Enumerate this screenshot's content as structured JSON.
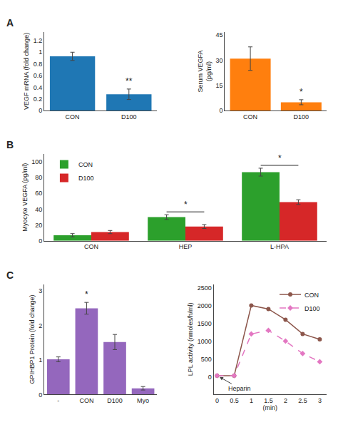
{
  "chart_data": [
    {
      "type": "bar",
      "title": "A",
      "categories": [
        "CON",
        "D100"
      ],
      "values": [
        0.93,
        0.28
      ],
      "errors": [
        0.07,
        0.09
      ],
      "ylabel": "VEGF mRNA (fold change)",
      "ylim": [
        0,
        1.35
      ],
      "yticks": [
        0,
        0.2,
        0.4,
        0.6,
        0.8,
        1,
        1.2
      ],
      "grid": false,
      "annotations": [
        {
          "text": "**",
          "x": "D100"
        }
      ]
    },
    {
      "type": "bar",
      "categories": [
        "CON",
        "D100"
      ],
      "values": [
        31,
        5
      ],
      "errors": [
        7,
        1.5
      ],
      "ylabel": "Serum VEGFA\n(pg/ml)",
      "ylim": [
        0,
        47
      ],
      "yticks": [
        0,
        15,
        30,
        45
      ],
      "grid": false,
      "annotations": [
        {
          "text": "*",
          "x": "D100"
        }
      ]
    },
    {
      "type": "bar",
      "title": "B",
      "categories": [
        "CON",
        "HEP",
        "L-HPA"
      ],
      "series": [
        {
          "name": "CON",
          "values": [
            7,
            30,
            87
          ],
          "errors": [
            2,
            3,
            5
          ]
        },
        {
          "name": "D100",
          "values": [
            11,
            18,
            49
          ],
          "errors": [
            2,
            2.5,
            3
          ]
        }
      ],
      "ylabel": "Myocyte VEGFA (pg/ml)",
      "ylim": [
        0,
        110
      ],
      "yticks": [
        0,
        20,
        40,
        60,
        80,
        100
      ],
      "legend": "upper left",
      "grid": false,
      "annotations": [
        {
          "text": "*",
          "x": "HEP"
        },
        {
          "text": "*",
          "x": "L-HPA"
        }
      ]
    },
    {
      "type": "bar",
      "title": "C",
      "categories": [
        "-",
        "CON",
        "D100",
        "Myo"
      ],
      "values": [
        1.02,
        2.5,
        1.52,
        0.18
      ],
      "errors": [
        0.07,
        0.17,
        0.22,
        0.05
      ],
      "ylabel": "GPIHBP1 Protein (fold change)",
      "ylim": [
        0,
        3.2
      ],
      "yticks": [
        0,
        1,
        2,
        3
      ],
      "grid": false,
      "annotations": [
        {
          "text": "*",
          "x": "CON"
        }
      ]
    },
    {
      "type": "line",
      "x": [
        0,
        0.5,
        1,
        1.5,
        2,
        2.5,
        3
      ],
      "series": [
        {
          "name": "CON",
          "values": [
            30,
            30,
            2000,
            1900,
            1600,
            1200,
            1050
          ],
          "line_style": "solid",
          "marker": "circle"
        },
        {
          "name": "D100",
          "values": [
            30,
            30,
            1200,
            1300,
            1000,
            650,
            420
          ],
          "line_style": "dashed",
          "marker": "diamond"
        }
      ],
      "xlabel": "(min)",
      "ylabel": "LPL activity (nmoles/h/ml)",
      "xlim": [
        -0.1,
        3.2
      ],
      "xticks": [
        0,
        0.5,
        1,
        1.5,
        2,
        2.5,
        3
      ],
      "ylim": [
        -500,
        2600
      ],
      "yticks": [
        0,
        500,
        1000,
        1500,
        2000,
        2500
      ],
      "legend": "upper right",
      "grid": false,
      "annotations": [
        {
          "text": "Heparin",
          "x": 0
        }
      ]
    }
  ]
}
